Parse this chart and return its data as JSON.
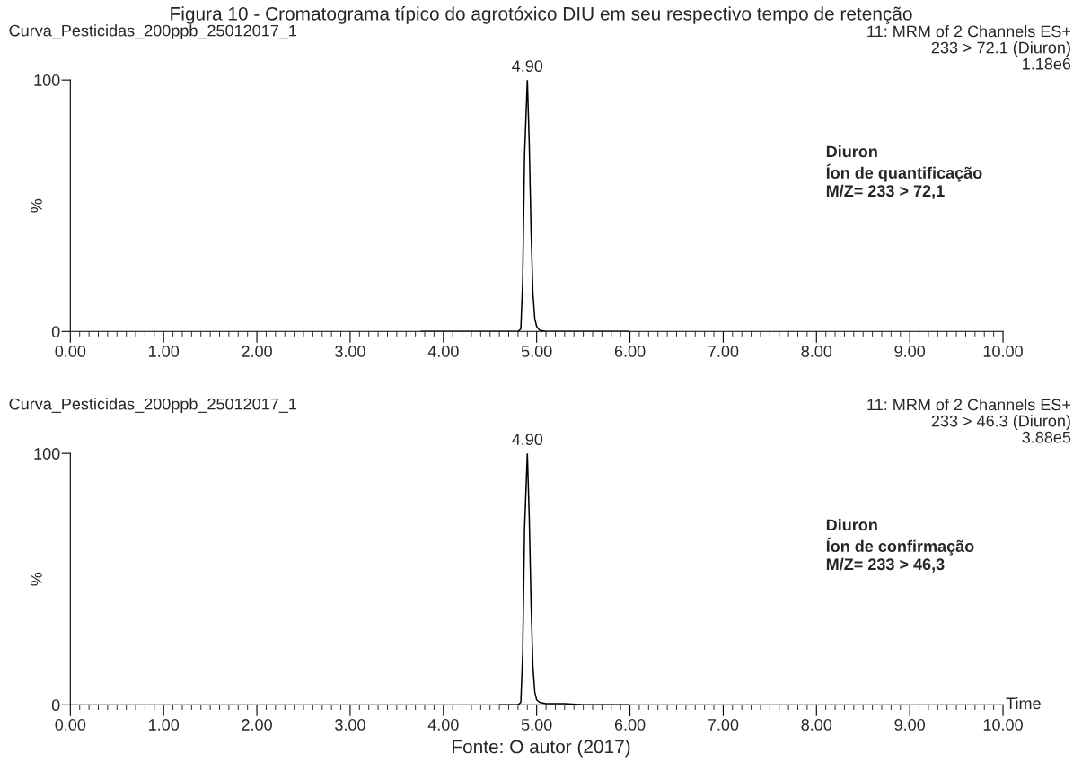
{
  "chart_data": [
    {
      "type": "line",
      "title": "Figura 10 - Cromatograma típico do agrotóxico DIU em seu respectivo tempo de retenção",
      "subtitle": "Curva_Pesticidas_200ppb_25012017_1",
      "ylabel": "%",
      "annotations": [
        "11: MRM of 2 Channels ES+\n233 > 72.1 (Diuron)\n1.18e6",
        "Diuron\nÍon de quantificação\nM/Z= 233 > 72,1",
        {
          "text": "4.90",
          "x": 4.9,
          "y": 100
        }
      ],
      "series": [
        {
          "color": "#000000",
          "x": [
            3.76,
            4.5,
            4.8,
            4.83,
            4.85,
            4.87,
            4.9,
            4.92,
            4.94,
            4.96,
            4.98,
            5.0,
            5.03,
            5.1,
            5.5,
            5.98
          ],
          "values": [
            0,
            0,
            0,
            1,
            20,
            70,
            100,
            75,
            40,
            15,
            5,
            2,
            0.5,
            0,
            0,
            0
          ]
        }
      ],
      "xlim": [
        0,
        10
      ],
      "ylim": [
        0,
        100
      ],
      "xticks": [
        {
          "value": 0,
          "label": "0.00"
        },
        {
          "value": 1,
          "label": "1.00"
        },
        {
          "value": 2,
          "label": "2.00"
        },
        {
          "value": 3,
          "label": "3.00"
        },
        {
          "value": 4,
          "label": "4.00"
        },
        {
          "value": 5,
          "label": "5.00"
        },
        {
          "value": 6,
          "label": "6.00"
        },
        {
          "value": 7,
          "label": "7.00"
        },
        {
          "value": 8,
          "label": "8.00"
        },
        {
          "value": 9,
          "label": "9.00"
        },
        {
          "value": 10,
          "label": "10.00"
        }
      ],
      "yticks": [
        0,
        100
      ],
      "grid": false,
      "legend": false,
      "marker": "none",
      "line_style": "solid"
    },
    {
      "type": "line",
      "subtitle": "Curva_Pesticidas_200ppb_25012017_1",
      "ylabel": "%",
      "xlabel": "Time",
      "annotations": [
        "11: MRM of 2 Channels ES+\n233 > 46.3 (Diuron)\n3.88e5",
        "Diuron\nÍon de confirmação\nM/Z= 233 > 46,3",
        {
          "text": "4.90",
          "x": 4.9,
          "y": 100
        },
        "Fonte: O autor (2017)"
      ],
      "series": [
        {
          "color": "#000000",
          "x": [
            4.6,
            4.8,
            4.83,
            4.85,
            4.87,
            4.9,
            4.92,
            4.94,
            4.96,
            4.98,
            5.0,
            5.03,
            5.1,
            5.3,
            5.5,
            5.98
          ],
          "values": [
            0,
            0,
            1,
            20,
            70,
            100,
            75,
            40,
            15,
            5,
            2,
            1,
            0.5,
            0.5,
            0,
            0
          ]
        }
      ],
      "xlim": [
        0,
        10
      ],
      "ylim": [
        0,
        100
      ],
      "xticks": [
        {
          "value": 0,
          "label": "0.00"
        },
        {
          "value": 1,
          "label": "1.00"
        },
        {
          "value": 2,
          "label": "2.00"
        },
        {
          "value": 3,
          "label": "3.00"
        },
        {
          "value": 4,
          "label": "4.00"
        },
        {
          "value": 5,
          "label": "5.00"
        },
        {
          "value": 6,
          "label": "6.00"
        },
        {
          "value": 7,
          "label": "7.00"
        },
        {
          "value": 8,
          "label": "8.00"
        },
        {
          "value": 9,
          "label": "9.00"
        },
        {
          "value": 10,
          "label": "10.00"
        }
      ],
      "yticks": [
        0,
        100
      ],
      "grid": false,
      "legend": false,
      "marker": "none",
      "line_style": "solid"
    }
  ]
}
